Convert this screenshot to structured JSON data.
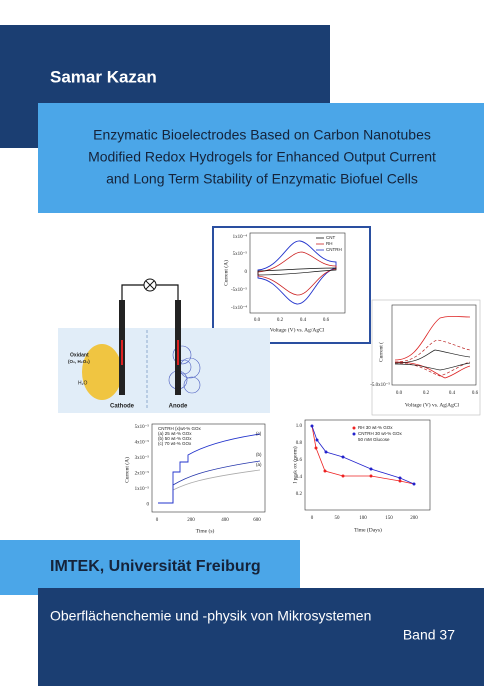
{
  "author": "Samar Kazan",
  "title": [
    "Enzymatic Bioelectrodes Based on Carbon Nanotubes",
    "Modified Redox Hydrogels for Enhanced Output Current",
    "and Long Term Stability of Enzymatic Biofuel Cells"
  ],
  "figures": {
    "cv": {
      "yticks": [
        "1x10⁻⁴",
        "5x10⁻⁵",
        "0",
        "-5x10⁻⁵",
        "-1x10⁻⁴"
      ],
      "xticks": [
        "0.0",
        "0.2",
        "0.4",
        "0.6"
      ],
      "xlabel": "Voltage (V) vs. Ag/AgCl",
      "ylabel": "Current (A)",
      "legend": [
        "CNT",
        "RH",
        "CNTRH"
      ]
    },
    "cv2": {
      "yticks": [
        "-5.0x10⁻⁵"
      ],
      "xticks": [
        "0.0",
        "0.2",
        "0.4",
        "0.6"
      ],
      "xlabel": "Voltage (V) vs. Ag|AgCl",
      "ylabel": "Current ("
    },
    "schematic": {
      "oxidant": [
        "Oxidant",
        "(O₂, H₂O₂)"
      ],
      "water": "H₂O",
      "cathode": "Cathode",
      "anode": "Anode"
    },
    "current": {
      "yticks": [
        "5x10⁻⁵",
        "4x10⁻⁵",
        "3x10⁻⁵",
        "2x10⁻⁵",
        "1x10⁻⁵",
        "0"
      ],
      "xticks": [
        "0",
        "200",
        "400",
        "600"
      ],
      "xlabel": "Time (s)",
      "ylabel": "Current (A)",
      "legend": [
        "CNTRH (x)wt-% GOx",
        "(a) 25 wt-% GOx",
        "(b) 50 wt-% GOx",
        "(c) 70 wt-% GOx"
      ],
      "curve_labels": [
        "(c)",
        "(b)",
        "(a)"
      ]
    },
    "stability": {
      "yticks": [
        "1.0",
        "0.8",
        "0.6",
        "0.4",
        "0.2"
      ],
      "xticks": [
        "0",
        "50",
        "100",
        "150",
        "200"
      ],
      "xlabel": "Time (Days)",
      "ylabel": "I peak ox (norm)",
      "legend": [
        "RH 30 wt-% GOx",
        "CNTRH 30 wt-% GOx",
        "50 mM Glucose"
      ]
    }
  },
  "institute": "IMTEK, Universität Freiburg",
  "series": "Oberflächenchemie und -physik von Mikrosystemen",
  "volume": "Band 37"
}
